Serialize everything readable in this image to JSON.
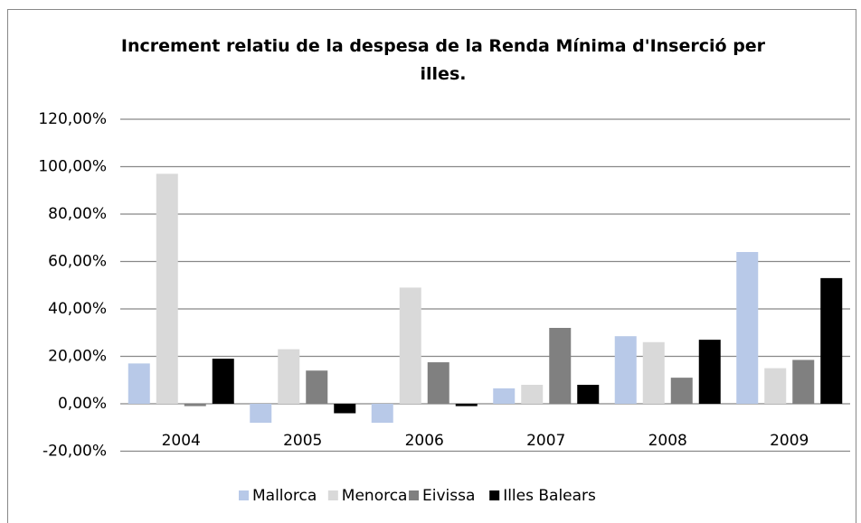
{
  "chart_data": {
    "type": "bar",
    "title": "Increment relatiu de la despesa de la Renda Mínima d'Inserció per illes.",
    "categories": [
      "2004",
      "2005",
      "2006",
      "2007",
      "2008",
      "2009"
    ],
    "series": [
      {
        "name": "Mallorca",
        "color": "#b8c9e8",
        "values": [
          17,
          -8,
          -8,
          6.5,
          28.5,
          64
        ]
      },
      {
        "name": "Menorca",
        "color": "#d9d9d9",
        "values": [
          97,
          23,
          49,
          8,
          26,
          15
        ]
      },
      {
        "name": "Eivissa",
        "color": "#808080",
        "values": [
          -1,
          14,
          17.5,
          32,
          11,
          18.5
        ]
      },
      {
        "name": "Illes Balears",
        "color": "#000000",
        "values": [
          19,
          -4,
          -1,
          8,
          27,
          53
        ]
      }
    ],
    "ylim": [
      -20,
      120
    ],
    "yticks": [
      {
        "value": -20,
        "label": "-20,00%"
      },
      {
        "value": 0,
        "label": "0,00%"
      },
      {
        "value": 20,
        "label": "20,00%"
      },
      {
        "value": 40,
        "label": "40,00%"
      },
      {
        "value": 60,
        "label": "60,00%"
      },
      {
        "value": 80,
        "label": "80,00%"
      },
      {
        "value": 100,
        "label": "100,00%"
      },
      {
        "value": 120,
        "label": "120,00%"
      }
    ],
    "grid": true,
    "legend": "bottom"
  }
}
